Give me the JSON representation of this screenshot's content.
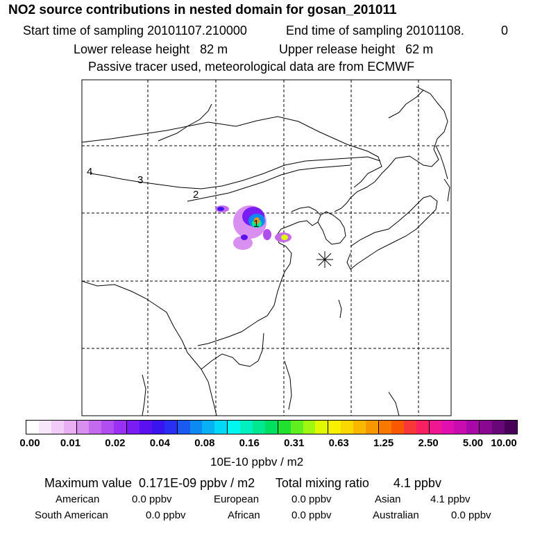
{
  "header": {
    "title": "NO2 source contributions in nested domain for gosan_201011",
    "start_label": "Start time of sampling 20101107.210000",
    "end_label": "End time of sampling 20101108.",
    "end_value": "0",
    "lower_label": "Lower release height   82 m",
    "upper_label": "Upper release height   62 m",
    "tracer_note": "Passive tracer used, meteorological data are from ECMWF"
  },
  "map": {
    "contour_labels": [
      "4",
      "3",
      "2",
      "1"
    ],
    "station_marker": "asterisk-icon"
  },
  "colorbar": {
    "tick_labels": [
      "0.00",
      "0.01",
      "0.02",
      "0.04",
      "0.08",
      "0.16",
      "0.31",
      "0.63",
      "1.25",
      "2.50",
      "5.00",
      "10.00"
    ],
    "unit": "10E-10 ppbv / m2",
    "colors": [
      "#ffffff",
      "#f8e6fb",
      "#f0ccf6",
      "#e8b0f2",
      "#d98ff0",
      "#c46aee",
      "#b04ef0",
      "#9a30f4",
      "#7a1cf4",
      "#5a10f0",
      "#3a14ee",
      "#2a2ef2",
      "#1a5af0",
      "#0a8af2",
      "#08b0f4",
      "#00d8f8",
      "#00f8f0",
      "#00f0c0",
      "#00e890",
      "#00e060",
      "#20e030",
      "#60f020",
      "#a0f810",
      "#e0f800",
      "#f8f000",
      "#f8d800",
      "#f8b800",
      "#f89800",
      "#f87800",
      "#f85800",
      "#f83838",
      "#f82060",
      "#f01890",
      "#e010b0",
      "#c80cb0",
      "#a808a8",
      "#880890",
      "#680878",
      "#480058"
    ]
  },
  "stats": {
    "max_line": "Maximum value  0.171E-09 ppbv / m2      Total mixing ratio       4.1 ppbv",
    "american": "American",
    "american_val": "0.0 ppbv",
    "european": "European",
    "european_val": "0.0 ppbv",
    "asian": "Asian",
    "asian_val": "4.1 ppbv",
    "south_american": "South American",
    "south_american_val": "0.0 ppbv",
    "african": "African",
    "african_val": "0.0 ppbv",
    "australian": "Australian",
    "australian_val": "0.0 ppbv"
  }
}
